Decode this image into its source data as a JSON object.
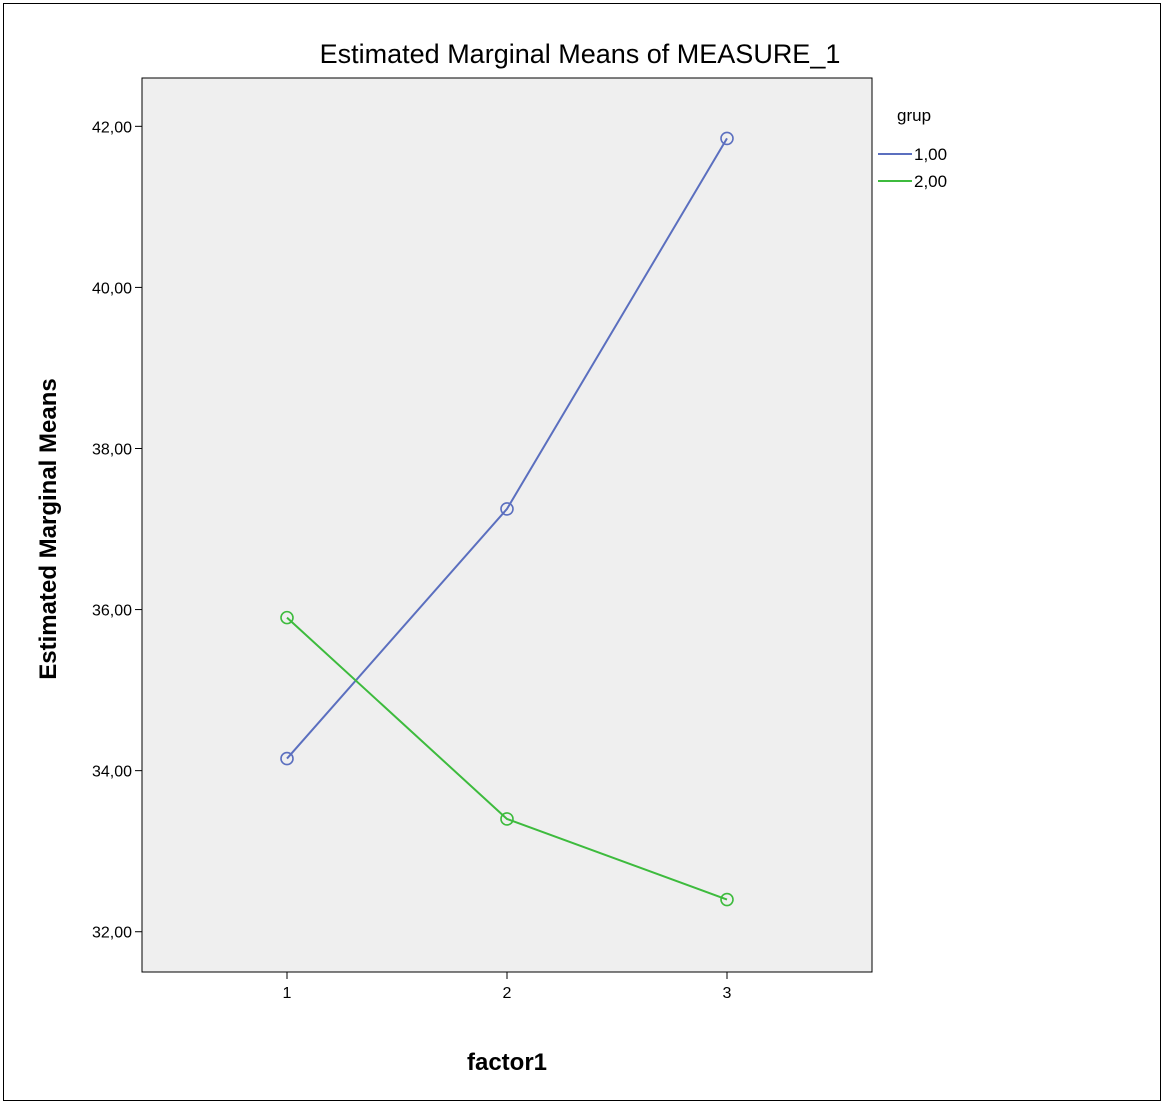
{
  "chart_data": {
    "type": "line",
    "title": "Estimated Marginal Means of MEASURE_1",
    "xlabel": "factor1",
    "ylabel": "Estimated Marginal Means",
    "categories": [
      "1",
      "2",
      "3"
    ],
    "yticks": [
      "32,00",
      "34,00",
      "36,00",
      "38,00",
      "40,00",
      "42,00"
    ],
    "ytick_values": [
      32,
      34,
      36,
      38,
      40,
      42
    ],
    "ylim": [
      31.5,
      42.6
    ],
    "grid": false,
    "legend": {
      "title": "grup",
      "placement": "top-right"
    },
    "series": [
      {
        "name": "1,00",
        "color": "#5b6fbf",
        "values": [
          34.15,
          37.25,
          41.85
        ]
      },
      {
        "name": "2,00",
        "color": "#3dbb3d",
        "values": [
          35.9,
          33.4,
          32.4
        ]
      }
    ],
    "plot_background": "#efefef"
  }
}
